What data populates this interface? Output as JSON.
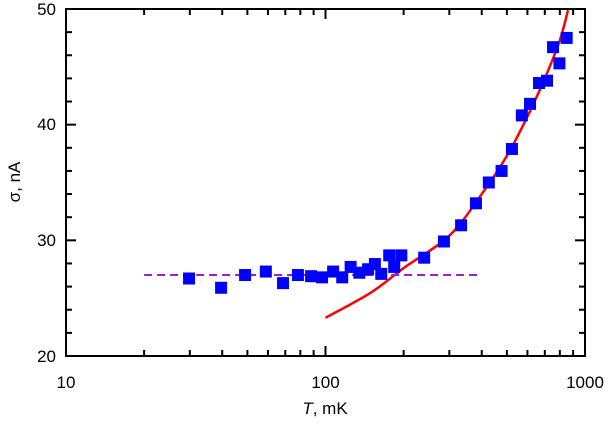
{
  "chart_data": {
    "type": "scatter",
    "title": "",
    "xlabel": {
      "variable": "T",
      "unit": ", mK"
    },
    "ylabel": "σ, nA",
    "x_scale": "log",
    "xlim": [
      10,
      1000
    ],
    "ylim": [
      20,
      50
    ],
    "x_ticks": [
      "10",
      "100",
      "1000"
    ],
    "y_ticks": [
      "20",
      "30",
      "40",
      "50"
    ],
    "grid": false,
    "legend": "none",
    "series": [
      {
        "type": "scatter",
        "marker": "square",
        "color": "#0000ff",
        "x": [
          29.8,
          39.6,
          49,
          58.9,
          68.6,
          78.3,
          88,
          97,
          107,
          116,
          125,
          135,
          146,
          155,
          164,
          176,
          184,
          196,
          240,
          286,
          333,
          380,
          426,
          477,
          523,
          571,
          614,
          665,
          714,
          753,
          797,
          850
        ],
        "y": [
          26.7,
          25.9,
          27.0,
          27.3,
          26.3,
          27.0,
          26.9,
          26.8,
          27.3,
          26.8,
          27.7,
          27.2,
          27.5,
          27.95,
          27.1,
          28.7,
          27.7,
          28.7,
          28.5,
          29.9,
          31.3,
          33.2,
          35.0,
          36.0,
          37.9,
          40.8,
          41.8,
          43.6,
          43.8,
          46.7,
          45.3,
          47.5
        ]
      },
      {
        "type": "line",
        "style": "solid",
        "color": "#ff0000",
        "x": [
          100,
          150,
          200,
          300,
          400,
          500,
          600,
          700,
          800,
          860
        ],
        "y": [
          23.3,
          25.5,
          27.6,
          30.4,
          34.0,
          37.3,
          40.7,
          44.0,
          47.3,
          49.9
        ]
      },
      {
        "type": "line",
        "style": "dashed",
        "color": "#9b1fd6",
        "x": [
          20,
          400
        ],
        "y": [
          27,
          27
        ]
      }
    ]
  }
}
